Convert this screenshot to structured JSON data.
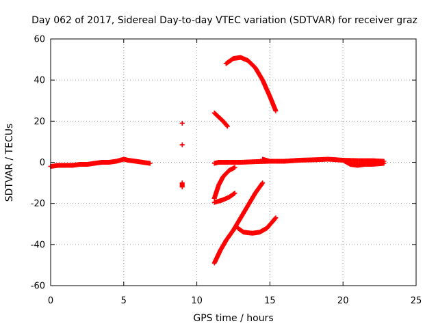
{
  "chart_data": {
    "type": "scatter",
    "title": "Day 062 of 2017, Sidereal Day-to-day VTEC variation (SDTVAR) for receiver graz",
    "xlabel": "GPS time / hours",
    "ylabel": "SDTVAR / TECUs",
    "xlim": [
      0,
      25
    ],
    "ylim": [
      -60,
      60
    ],
    "xticks": [
      0,
      5,
      10,
      15,
      20,
      25
    ],
    "yticks": [
      -60,
      -40,
      -20,
      0,
      20,
      40,
      60
    ],
    "grid": true,
    "marker": "plus",
    "color": "#ff0000",
    "series": [
      {
        "points": [
          [
            0,
            -2
          ],
          [
            0.5,
            -1.5
          ],
          [
            1,
            -1.5
          ],
          [
            1.5,
            -1.5
          ],
          [
            2,
            -1
          ],
          [
            2.5,
            -1
          ],
          [
            3,
            -0.5
          ],
          [
            3.5,
            0
          ],
          [
            4,
            0
          ],
          [
            4.5,
            0.5
          ],
          [
            5,
            1.5
          ],
          [
            5.3,
            1
          ],
          [
            5.8,
            0.5
          ],
          [
            6.3,
            0
          ],
          [
            6.8,
            -0.5
          ]
        ]
      },
      {
        "points": [
          [
            9,
            19
          ]
        ]
      },
      {
        "points": [
          [
            9,
            8.5
          ]
        ]
      },
      {
        "points": [
          [
            9,
            -10
          ],
          [
            9,
            -12
          ]
        ]
      },
      {
        "points": [
          [
            11.2,
            -0.5
          ],
          [
            11.5,
            0
          ],
          [
            12,
            0
          ],
          [
            13,
            0
          ],
          [
            14,
            0.3
          ],
          [
            15,
            0.5
          ],
          [
            16,
            0.5
          ],
          [
            17,
            1
          ],
          [
            18,
            1.2
          ],
          [
            19,
            1.5
          ],
          [
            20,
            1
          ],
          [
            21,
            0.8
          ],
          [
            22,
            0.8
          ],
          [
            22.8,
            0.5
          ]
        ]
      },
      {
        "points": [
          [
            14.5,
            1.5
          ],
          [
            15,
            0.5
          ]
        ]
      },
      {
        "points": [
          [
            20,
            1
          ],
          [
            20.5,
            -1
          ],
          [
            21,
            -1.5
          ],
          [
            21.5,
            -1
          ],
          [
            22,
            -1
          ],
          [
            22.8,
            -0.5
          ]
        ]
      },
      {
        "points": [
          [
            11.2,
            24
          ],
          [
            11.5,
            22
          ],
          [
            11.8,
            20
          ],
          [
            12.1,
            17.5
          ]
        ]
      },
      {
        "points": [
          [
            12,
            48
          ],
          [
            12.5,
            50.5
          ],
          [
            13,
            51
          ],
          [
            13.5,
            49.5
          ],
          [
            14,
            46
          ],
          [
            14.5,
            40
          ],
          [
            15,
            32
          ],
          [
            15.4,
            25
          ]
        ]
      },
      {
        "points": [
          [
            11.2,
            -17.5
          ],
          [
            11.5,
            -11
          ],
          [
            11.8,
            -7
          ],
          [
            12.2,
            -4
          ],
          [
            12.6,
            -2.5
          ]
        ]
      },
      {
        "points": [
          [
            11.2,
            -19.5
          ],
          [
            11.7,
            -18.5
          ],
          [
            12.2,
            -17
          ],
          [
            12.6,
            -15
          ]
        ]
      },
      {
        "points": [
          [
            11.2,
            -49
          ],
          [
            11.6,
            -43
          ],
          [
            12,
            -38
          ],
          [
            12.5,
            -33
          ],
          [
            13,
            -27
          ],
          [
            13.5,
            -21
          ],
          [
            14,
            -15
          ],
          [
            14.5,
            -10
          ]
        ]
      },
      {
        "points": [
          [
            12.8,
            -32
          ],
          [
            13.2,
            -34
          ],
          [
            13.8,
            -34.5
          ],
          [
            14.3,
            -34
          ],
          [
            14.8,
            -32
          ],
          [
            15.4,
            -27
          ]
        ]
      }
    ]
  }
}
